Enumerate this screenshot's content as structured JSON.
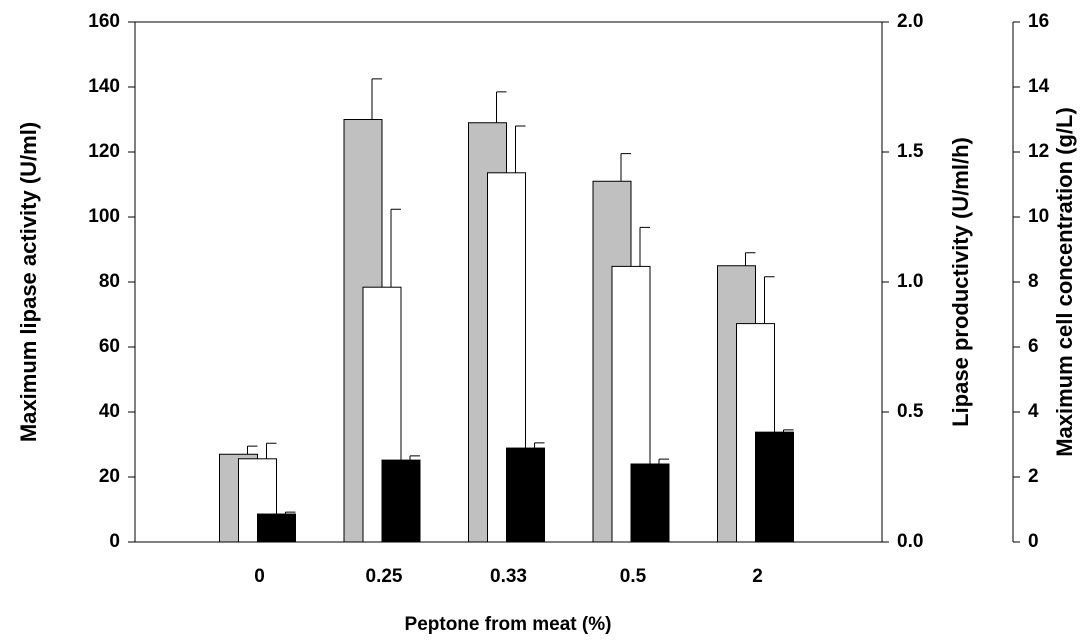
{
  "chart_data": {
    "type": "bar",
    "categories": [
      "0",
      "0.25",
      "0.33",
      "0.5",
      "2"
    ],
    "x_label": "Peptone from meat (%)",
    "y_label": "Maximum lipase activity (U/ml)",
    "y2_label": "Lipase productivity (U/ml/h)",
    "y3_label": "Maximum cell concentration (g/L)",
    "ylim": [
      0,
      160
    ],
    "yticks": [
      0,
      20,
      40,
      60,
      80,
      100,
      120,
      140,
      160
    ],
    "y2lim": [
      0,
      2
    ],
    "y2ticks": [
      {
        "value": 0,
        "label": "0.0"
      },
      0.5,
      {
        "value": 1,
        "label": "1.0"
      },
      1.5,
      {
        "value": 2,
        "label": "2.0"
      }
    ],
    "y3lim": [
      0,
      16
    ],
    "y3ticks": [
      0,
      2,
      4,
      6,
      8,
      10,
      12,
      14,
      16
    ],
    "series": [
      {
        "color": "#c0c0c0",
        "axis": "y",
        "values": [
          27,
          130,
          129,
          111,
          85
        ],
        "errors": [
          2.5,
          12.5,
          9.5,
          8.5,
          4
        ]
      },
      {
        "color": "#ffffff",
        "axis": "y2",
        "values": [
          0.32,
          0.98,
          1.42,
          1.06,
          0.84
        ],
        "errors": [
          0.06,
          0.3,
          0.18,
          0.15,
          0.18
        ]
      },
      {
        "color": "#000000",
        "axis": "y3",
        "values": [
          0.86,
          2.52,
          2.89,
          2.4,
          3.38
        ],
        "errors": [
          0.06,
          0.13,
          0.16,
          0.15,
          0.07
        ]
      }
    ]
  }
}
